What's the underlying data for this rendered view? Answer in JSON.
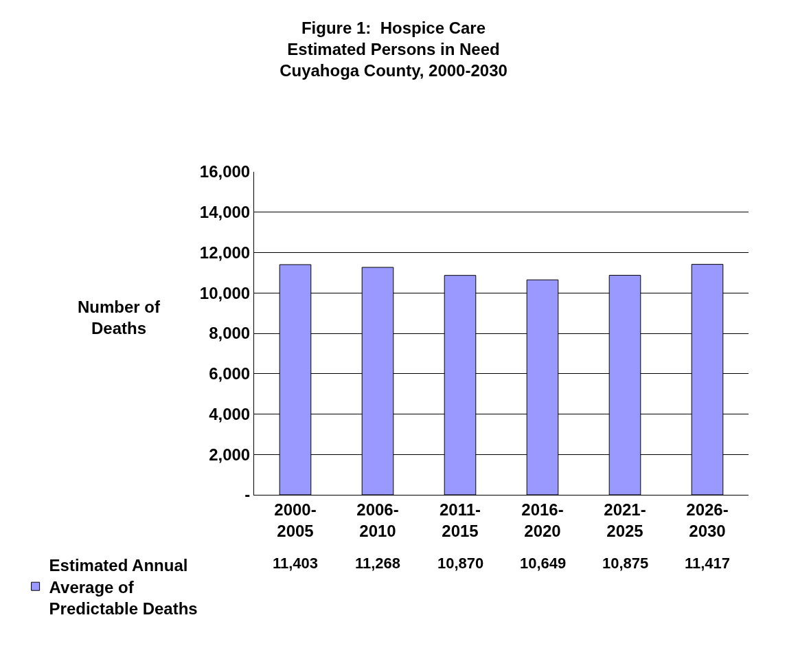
{
  "chart_data": {
    "type": "bar",
    "title": "Figure 1:  Hospice Care\nEstimated Persons in Need\nCuyahoga County, 2000-2030",
    "ylabel": "Number of Deaths",
    "categories": [
      "2000-2005",
      "2006-2010",
      "2011-2015",
      "2016-2020",
      "2021-2025",
      "2026-2030"
    ],
    "series": [
      {
        "name": "Estimated Annual Average of Predictable Deaths",
        "color": "#9999ff",
        "values": [
          11403,
          11268,
          10870,
          10649,
          10875,
          11417
        ],
        "value_labels": [
          "11,403",
          "11,268",
          "10,870",
          "10,649",
          "10,875",
          "11,417"
        ]
      }
    ],
    "ylim": [
      0,
      16000
    ],
    "yticks": [
      {
        "value": 0,
        "label": "-"
      },
      {
        "value": 2000,
        "label": "2,000"
      },
      {
        "value": 4000,
        "label": "4,000"
      },
      {
        "value": 6000,
        "label": "6,000"
      },
      {
        "value": 8000,
        "label": "8,000"
      },
      {
        "value": 10000,
        "label": "10,000"
      },
      {
        "value": 12000,
        "label": "12,000"
      },
      {
        "value": 14000,
        "label": "14,000"
      },
      {
        "value": 16000,
        "label": "16,000"
      }
    ],
    "grid": "y",
    "legend": "bottom left"
  }
}
